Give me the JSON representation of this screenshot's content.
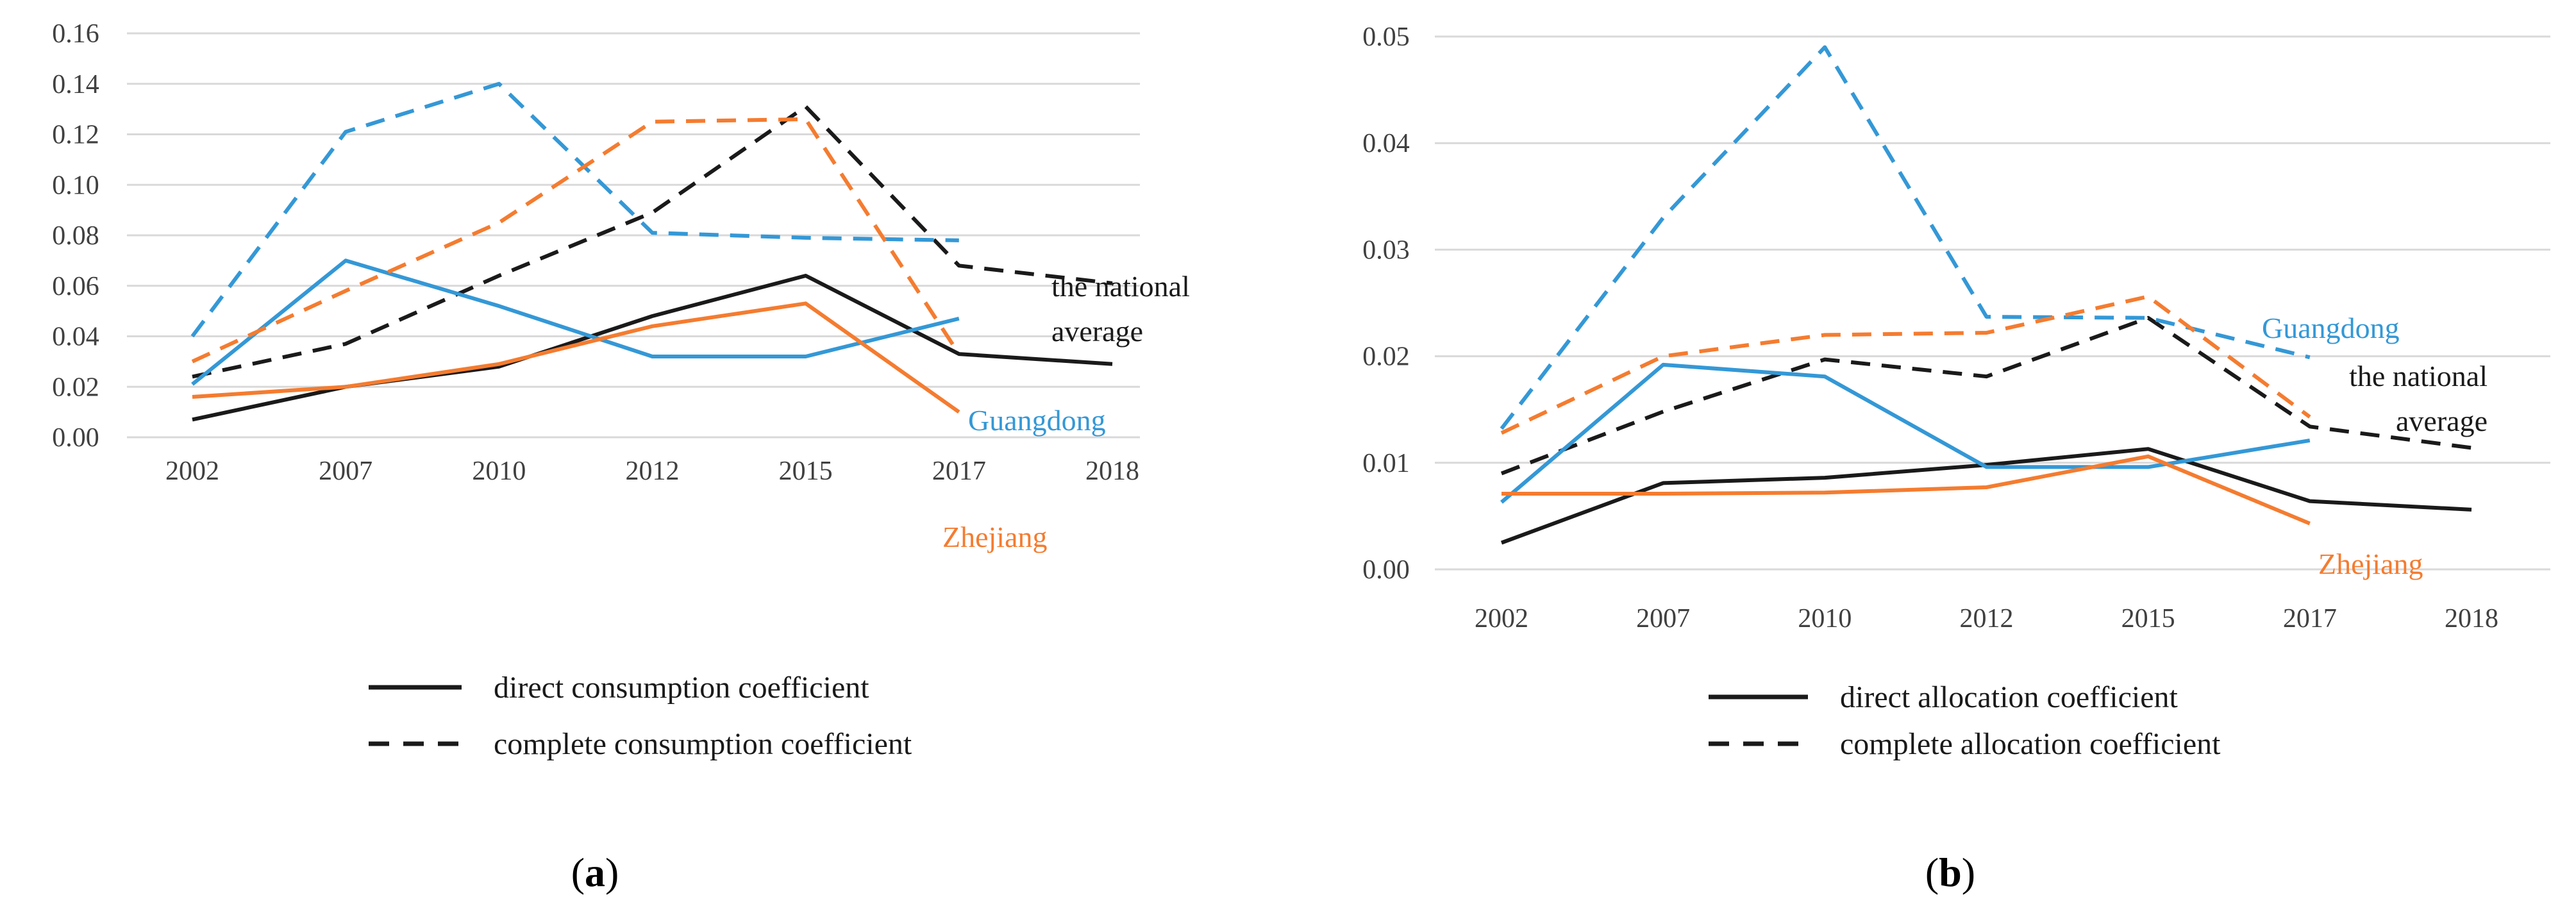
{
  "colors": {
    "national": "#1a1a1a",
    "guangdong": "#3498d6",
    "zhejiang": "#f47c30",
    "grid": "#d9d9d9"
  },
  "chart_data": [
    {
      "type": "line",
      "panel_label": "a",
      "categories": [
        "2002",
        "2007",
        "2010",
        "2012",
        "2015",
        "2017",
        "2018"
      ],
      "ylim": [
        0,
        0.16
      ],
      "yticks": [
        "0.00",
        "0.02",
        "0.04",
        "0.06",
        "0.08",
        "0.10",
        "0.12",
        "0.14",
        "0.16"
      ],
      "series": [
        {
          "name": "national direct",
          "region": "national",
          "style": "solid",
          "values": [
            0.007,
            0.02,
            0.028,
            0.048,
            0.064,
            0.033,
            0.029
          ]
        },
        {
          "name": "national complete",
          "region": "national",
          "style": "dashed",
          "values": [
            0.024,
            0.037,
            0.064,
            0.089,
            0.131,
            0.068,
            0.061
          ]
        },
        {
          "name": "Guangdong direct",
          "region": "guangdong",
          "style": "solid",
          "values": [
            0.021,
            0.07,
            0.052,
            0.032,
            0.032,
            0.047,
            null
          ]
        },
        {
          "name": "Guangdong complete",
          "region": "guangdong",
          "style": "dashed",
          "values": [
            0.04,
            0.121,
            0.14,
            0.081,
            0.079,
            0.078,
            null
          ]
        },
        {
          "name": "Zhejiang direct",
          "region": "zhejiang",
          "style": "solid",
          "values": [
            0.016,
            0.02,
            0.029,
            0.044,
            0.053,
            0.01,
            null
          ]
        },
        {
          "name": "Zhejiang complete",
          "region": "zhejiang",
          "style": "dashed",
          "values": [
            0.03,
            0.058,
            0.085,
            0.125,
            0.126,
            0.033,
            null
          ]
        }
      ],
      "legend": [
        "direct consumption coefficient",
        "complete consumption coefficient"
      ],
      "annotations": [
        {
          "lines": [
            "the national",
            "average"
          ],
          "region": "national"
        },
        {
          "lines": [
            "Guangdong"
          ],
          "region": "guangdong"
        },
        {
          "lines": [
            "Zhejiang"
          ],
          "region": "zhejiang"
        }
      ]
    },
    {
      "type": "line",
      "panel_label": "b",
      "categories": [
        "2002",
        "2007",
        "2010",
        "2012",
        "2015",
        "2017",
        "2018"
      ],
      "ylim": [
        0,
        0.05
      ],
      "yticks": [
        "0.00",
        "0.01",
        "0.02",
        "0.03",
        "0.04",
        "0.05"
      ],
      "series": [
        {
          "name": "national direct",
          "region": "national",
          "style": "solid",
          "values": [
            0.0025,
            0.0081,
            0.0086,
            0.0098,
            0.0113,
            0.0064,
            0.0056
          ]
        },
        {
          "name": "national complete",
          "region": "national",
          "style": "dashed",
          "values": [
            0.009,
            0.0148,
            0.0197,
            0.0181,
            0.0236,
            0.0134,
            0.0114
          ]
        },
        {
          "name": "Guangdong direct",
          "region": "guangdong",
          "style": "solid",
          "values": [
            0.0063,
            0.0192,
            0.0181,
            0.0096,
            0.0096,
            0.0121,
            null
          ]
        },
        {
          "name": "Guangdong complete",
          "region": "guangdong",
          "style": "dashed",
          "values": [
            0.0132,
            0.033,
            0.049,
            0.0237,
            0.0236,
            0.0199,
            null
          ]
        },
        {
          "name": "Zhejiang direct",
          "region": "zhejiang",
          "style": "solid",
          "values": [
            0.0071,
            0.0071,
            0.0072,
            0.0077,
            0.0106,
            0.0043,
            null
          ]
        },
        {
          "name": "Zhejiang complete",
          "region": "zhejiang",
          "style": "dashed",
          "values": [
            0.0128,
            0.02,
            0.022,
            0.0222,
            0.0256,
            0.0143,
            null
          ]
        }
      ],
      "legend": [
        "direct allocation coefficient",
        "complete allocation coefficient"
      ],
      "annotations": [
        {
          "lines": [
            "Guangdong"
          ],
          "region": "guangdong"
        },
        {
          "lines": [
            "the national",
            "average"
          ],
          "region": "national"
        },
        {
          "lines": [
            "Zhejiang"
          ],
          "region": "zhejiang"
        }
      ]
    }
  ]
}
